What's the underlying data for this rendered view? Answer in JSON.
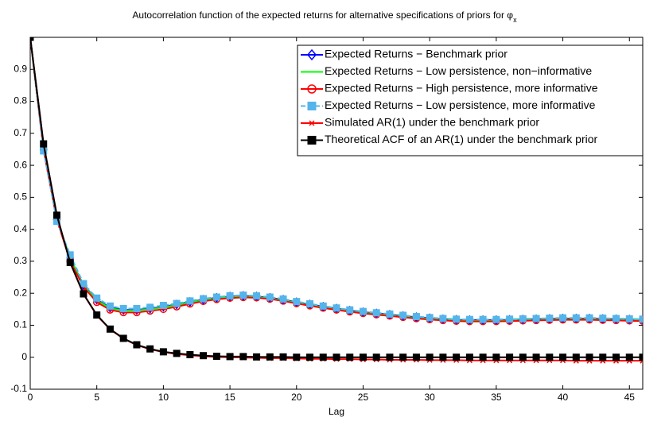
{
  "chart_data": {
    "type": "line",
    "title": "Autocorrelation function of the expected returns for alternative specifications of priors for φ",
    "title_subscript": "x",
    "x_label": "Lag",
    "x": [
      0,
      1,
      2,
      3,
      4,
      5,
      6,
      7,
      8,
      9,
      10,
      11,
      12,
      13,
      14,
      15,
      16,
      17,
      18,
      19,
      20,
      21,
      22,
      23,
      24,
      25,
      26,
      27,
      28,
      29,
      30,
      31,
      32,
      33,
      34,
      35,
      36,
      37,
      38,
      39,
      40,
      41,
      42,
      43,
      44,
      45,
      46
    ],
    "xlim": [
      0,
      46
    ],
    "xticks": [
      0,
      5,
      10,
      15,
      20,
      25,
      30,
      35,
      40,
      45
    ],
    "ylim": [
      -0.1,
      1
    ],
    "yticks": [
      -0.1,
      0,
      0.1,
      0.2,
      0.3,
      0.4,
      0.5,
      0.6,
      0.7,
      0.8,
      0.9
    ],
    "legend": "upper right",
    "series": [
      {
        "name": "Expected Returns − Benchmark prior",
        "color": "#0000ff",
        "marker": "diamond",
        "dash": "solid",
        "values": [
          1,
          0.65,
          0.43,
          0.31,
          0.225,
          0.18,
          0.155,
          0.148,
          0.148,
          0.152,
          0.158,
          0.165,
          0.173,
          0.18,
          0.186,
          0.19,
          0.192,
          0.19,
          0.186,
          0.18,
          0.172,
          0.165,
          0.158,
          0.152,
          0.146,
          0.141,
          0.137,
          0.133,
          0.129,
          0.125,
          0.122,
          0.119,
          0.117,
          0.116,
          0.116,
          0.116,
          0.117,
          0.118,
          0.119,
          0.12,
          0.121,
          0.121,
          0.121,
          0.12,
          0.119,
          0.118,
          0.117
        ]
      },
      {
        "name": "Expected Returns − Low persistence, non−informative",
        "color": "#00ff00",
        "marker": "none",
        "dash": "solid",
        "values": [
          1,
          0.65,
          0.43,
          0.31,
          0.223,
          0.178,
          0.153,
          0.146,
          0.146,
          0.15,
          0.156,
          0.163,
          0.171,
          0.178,
          0.184,
          0.188,
          0.19,
          0.188,
          0.184,
          0.178,
          0.17,
          0.163,
          0.156,
          0.15,
          0.144,
          0.139,
          0.135,
          0.131,
          0.127,
          0.123,
          0.12,
          0.117,
          0.115,
          0.114,
          0.114,
          0.114,
          0.115,
          0.116,
          0.117,
          0.118,
          0.119,
          0.119,
          0.119,
          0.118,
          0.117,
          0.116,
          0.115
        ]
      },
      {
        "name": "Expected Returns − High persistence, more informative",
        "color": "#ff0000",
        "marker": "circle",
        "dash": "solid",
        "values": [
          1,
          0.65,
          0.43,
          0.3,
          0.22,
          0.172,
          0.148,
          0.14,
          0.14,
          0.145,
          0.15,
          0.158,
          0.167,
          0.175,
          0.181,
          0.185,
          0.187,
          0.186,
          0.182,
          0.176,
          0.168,
          0.161,
          0.154,
          0.148,
          0.142,
          0.137,
          0.133,
          0.129,
          0.125,
          0.121,
          0.118,
          0.115,
          0.113,
          0.112,
          0.112,
          0.112,
          0.113,
          0.114,
          0.115,
          0.116,
          0.117,
          0.117,
          0.117,
          0.116,
          0.115,
          0.114,
          0.113
        ]
      },
      {
        "name": "Expected Returns − Low persistence, more informative",
        "color": "#55b4ea",
        "marker": "square",
        "dash": "dashed",
        "values": [
          1,
          0.645,
          0.425,
          0.32,
          0.23,
          0.185,
          0.16,
          0.152,
          0.152,
          0.156,
          0.162,
          0.168,
          0.176,
          0.183,
          0.188,
          0.192,
          0.194,
          0.192,
          0.188,
          0.182,
          0.174,
          0.167,
          0.16,
          0.154,
          0.148,
          0.143,
          0.139,
          0.135,
          0.131,
          0.127,
          0.124,
          0.121,
          0.119,
          0.118,
          0.118,
          0.118,
          0.119,
          0.12,
          0.121,
          0.122,
          0.123,
          0.123,
          0.123,
          0.122,
          0.121,
          0.12,
          0.119
        ]
      },
      {
        "name": "Simulated AR(1) under the benchmark prior",
        "color": "#ff0000",
        "marker": "x",
        "dash": "solid",
        "values": [
          1,
          0.667,
          0.444,
          0.296,
          0.197,
          0.131,
          0.087,
          0.058,
          0.038,
          0.025,
          0.016,
          0.01,
          0.006,
          0.003,
          0.001,
          0,
          -0.001,
          -0.002,
          -0.003,
          -0.003,
          -0.004,
          -0.005,
          -0.005,
          -0.006,
          -0.006,
          -0.007,
          -0.007,
          -0.008,
          -0.008,
          -0.008,
          -0.009,
          -0.009,
          -0.009,
          -0.01,
          -0.01,
          -0.01,
          -0.01,
          -0.01,
          -0.01,
          -0.01,
          -0.01,
          -0.011,
          -0.011,
          -0.011,
          -0.011,
          -0.011,
          -0.011
        ]
      },
      {
        "name": "Theoretical ACF of an AR(1) under the benchmark prior",
        "color": "#000000",
        "marker": "square",
        "dash": "solid",
        "values": [
          1,
          0.667,
          0.444,
          0.296,
          0.198,
          0.132,
          0.088,
          0.059,
          0.039,
          0.026,
          0.017,
          0.012,
          0.008,
          0.005,
          0.003,
          0.002,
          0.002,
          0.001,
          0.001,
          0.001,
          0,
          0,
          0,
          0,
          0,
          0,
          0,
          0,
          0,
          0,
          0,
          0,
          0,
          0,
          0,
          0,
          0,
          0,
          0,
          0,
          0,
          0,
          0,
          0,
          0,
          0,
          0
        ]
      }
    ]
  }
}
